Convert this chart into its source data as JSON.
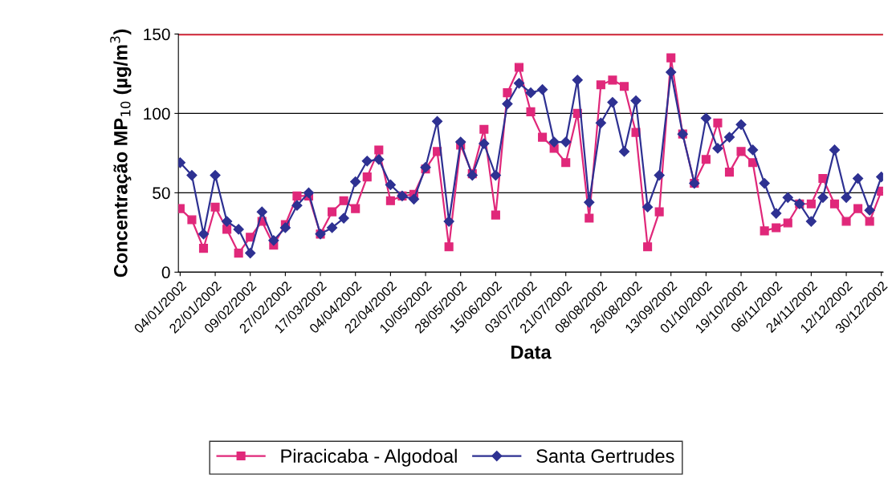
{
  "chart_data": {
    "type": "line",
    "xlabel": "Data",
    "ylabel": "Concentração MP$_{10}$ (µg/m$^{3}$)",
    "categories": [
      "04/01/2002",
      null,
      null,
      "22/01/2002",
      null,
      null,
      "09/02/2002",
      null,
      null,
      "27/02/2002",
      null,
      null,
      "17/03/2002",
      null,
      null,
      "04/04/2002",
      null,
      null,
      "22/04/2002",
      null,
      null,
      "10/05/2002",
      null,
      null,
      "28/05/2002",
      null,
      null,
      "15/06/2002",
      null,
      null,
      "03/07/2002",
      null,
      null,
      "21/07/2002",
      null,
      null,
      "08/08/2002",
      null,
      null,
      "26/08/2002",
      null,
      null,
      "13/09/2002",
      null,
      null,
      "01/10/2002",
      null,
      null,
      "19/10/2002",
      null,
      null,
      "06/11/2002",
      null,
      null,
      "24/11/2002",
      null,
      null,
      "12/12/2002",
      null,
      null,
      "30/12/2002"
    ],
    "series": [
      {
        "name": "Piracicaba - Algodoal",
        "color": "#e0287a",
        "marker": "square",
        "values": [
          40,
          33,
          15,
          41,
          27,
          12,
          22,
          32,
          17,
          30,
          48,
          48,
          24,
          38,
          45,
          40,
          60,
          77,
          45,
          48,
          49,
          65,
          76,
          16,
          80,
          62,
          90,
          36,
          113,
          129,
          101,
          85,
          78,
          69,
          100,
          34,
          118,
          121,
          117,
          88,
          16,
          38,
          135,
          87,
          56,
          71,
          94,
          63,
          76,
          69,
          26,
          28,
          31,
          43,
          43,
          59,
          43,
          32,
          40,
          32,
          51
        ]
      },
      {
        "name": "Santa Gertrudes",
        "color": "#2e3192",
        "marker": "diamond",
        "values": [
          69,
          61,
          24,
          61,
          32,
          27,
          12,
          38,
          20,
          28,
          42,
          50,
          24,
          28,
          34,
          57,
          70,
          71,
          55,
          48,
          46,
          66,
          95,
          32,
          82,
          61,
          81,
          61,
          106,
          119,
          113,
          115,
          82,
          82,
          121,
          44,
          94,
          107,
          76,
          108,
          41,
          61,
          126,
          87,
          56,
          97,
          78,
          85,
          93,
          77,
          56,
          37,
          47,
          43,
          32,
          47,
          77,
          47,
          59,
          39,
          60
        ]
      }
    ],
    "ylim": [
      0,
      150
    ],
    "yticks": [
      0,
      50,
      100,
      150
    ],
    "grid": "y",
    "legend": "bottom",
    "line_style": "solid",
    "ref_lines": [
      {
        "axis": "y",
        "value": 150,
        "color": "#e8273a"
      }
    ]
  }
}
